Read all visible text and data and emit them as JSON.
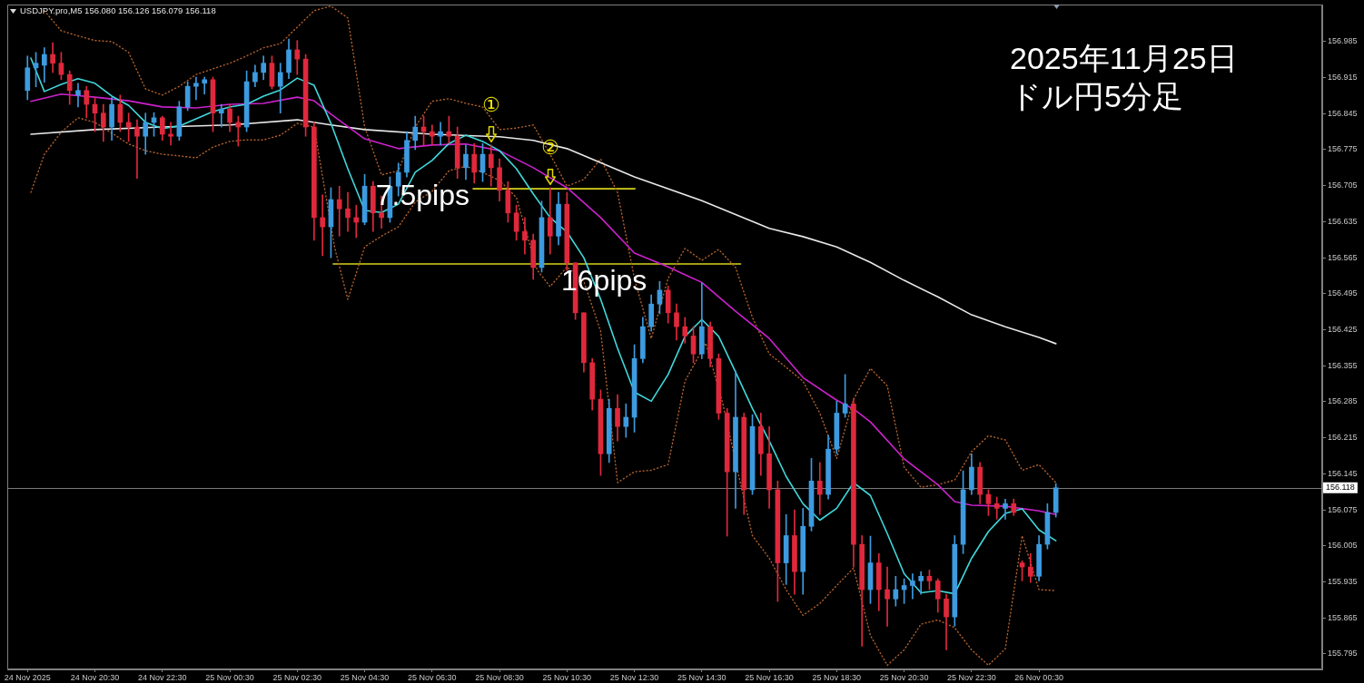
{
  "chart_data": {
    "type": "candlestick",
    "title": "2025年11月25日",
    "subtitle": "ドル円5分足",
    "annotations": [
      "USDJPY.pro,M5 156.080 156.126 156.079 156.118",
      {
        "text": "①",
        "x": "2025-11-25T08:15",
        "y": 156.784
      },
      {
        "text": "②",
        "x": "2025-11-25T10:00",
        "y": 156.701
      },
      {
        "text": "7.5pips",
        "x": "2025-11-25T07:43",
        "y": 156.699
      },
      {
        "text": "16pips",
        "x": "2025-11-25T11:36",
        "y": 156.553
      }
    ],
    "x": [
      "2025-11-24T18:30",
      "2025-11-24T18:45",
      "2025-11-24T19:00",
      "2025-11-24T19:15",
      "2025-11-24T19:30",
      "2025-11-24T19:45",
      "2025-11-24T20:00",
      "2025-11-24T20:15",
      "2025-11-24T20:30",
      "2025-11-24T20:45",
      "2025-11-24T21:00",
      "2025-11-24T21:15",
      "2025-11-24T21:30",
      "2025-11-24T21:45",
      "2025-11-24T22:00",
      "2025-11-24T22:15",
      "2025-11-24T22:30",
      "2025-11-24T22:45",
      "2025-11-24T23:00",
      "2025-11-24T23:15",
      "2025-11-24T23:30",
      "2025-11-24T23:45",
      "2025-11-25T00:00",
      "2025-11-25T00:15",
      "2025-11-25T00:30",
      "2025-11-25T00:45",
      "2025-11-25T01:00",
      "2025-11-25T01:15",
      "2025-11-25T01:30",
      "2025-11-25T01:45",
      "2025-11-25T02:00",
      "2025-11-25T02:15",
      "2025-11-25T02:30",
      "2025-11-25T02:45",
      "2025-11-25T03:00",
      "2025-11-25T03:15",
      "2025-11-25T03:30",
      "2025-11-25T03:45",
      "2025-11-25T04:00",
      "2025-11-25T04:15",
      "2025-11-25T04:30",
      "2025-11-25T04:45",
      "2025-11-25T05:00",
      "2025-11-25T05:15",
      "2025-11-25T05:30",
      "2025-11-25T05:45",
      "2025-11-25T06:00",
      "2025-11-25T06:15",
      "2025-11-25T06:30",
      "2025-11-25T06:45",
      "2025-11-25T07:00",
      "2025-11-25T07:15",
      "2025-11-25T07:30",
      "2025-11-25T07:45",
      "2025-11-25T08:00",
      "2025-11-25T08:15",
      "2025-11-25T08:30",
      "2025-11-25T08:45",
      "2025-11-25T09:00",
      "2025-11-25T09:15",
      "2025-11-25T09:30",
      "2025-11-25T09:45",
      "2025-11-25T10:00",
      "2025-11-25T10:15",
      "2025-11-25T10:30",
      "2025-11-25T10:45",
      "2025-11-25T11:00",
      "2025-11-25T11:15",
      "2025-11-25T11:30",
      "2025-11-25T11:45",
      "2025-11-25T12:00",
      "2025-11-25T12:15",
      "2025-11-25T12:30",
      "2025-11-25T12:45",
      "2025-11-25T13:00",
      "2025-11-25T13:15",
      "2025-11-25T13:30",
      "2025-11-25T13:45",
      "2025-11-25T14:00",
      "2025-11-25T14:15",
      "2025-11-25T14:30",
      "2025-11-25T14:45",
      "2025-11-25T15:00",
      "2025-11-25T15:15",
      "2025-11-25T15:30",
      "2025-11-25T15:45",
      "2025-11-25T16:00",
      "2025-11-25T16:15",
      "2025-11-25T16:30",
      "2025-11-25T16:45",
      "2025-11-25T17:00",
      "2025-11-25T17:15",
      "2025-11-25T17:30",
      "2025-11-25T17:45",
      "2025-11-25T18:00",
      "2025-11-25T18:15",
      "2025-11-25T18:30",
      "2025-11-25T18:45",
      "2025-11-25T19:00",
      "2025-11-25T19:15",
      "2025-11-25T19:30",
      "2025-11-25T19:45",
      "2025-11-25T20:00",
      "2025-11-25T20:15",
      "2025-11-25T20:30",
      "2025-11-25T20:45",
      "2025-11-25T21:00",
      "2025-11-25T21:15",
      "2025-11-25T21:30",
      "2025-11-25T21:45",
      "2025-11-25T22:00",
      "2025-11-25T22:15",
      "2025-11-25T22:30",
      "2025-11-25T22:45",
      "2025-11-25T23:00",
      "2025-11-25T23:15",
      "2025-11-25T23:30",
      "2025-11-25T23:45",
      "2025-11-26T00:00",
      "2025-11-26T00:15",
      "2025-11-26T00:30",
      "2025-11-26T00:45",
      "2025-11-26T01:00"
    ],
    "ohlc": [
      [
        156.89,
        156.957,
        156.872,
        156.934
      ],
      [
        156.934,
        156.964,
        156.897,
        156.943
      ],
      [
        156.939,
        156.973,
        156.906,
        156.96
      ],
      [
        156.96,
        156.983,
        156.925,
        156.943
      ],
      [
        156.943,
        156.964,
        156.911,
        156.921
      ],
      [
        156.921,
        156.928,
        156.863,
        156.89
      ],
      [
        156.881,
        156.904,
        156.858,
        156.89
      ],
      [
        156.89,
        156.898,
        156.837,
        156.863
      ],
      [
        156.863,
        156.876,
        156.81,
        156.846
      ],
      [
        156.846,
        156.863,
        156.791,
        156.819
      ],
      [
        156.819,
        156.876,
        156.793,
        156.863
      ],
      [
        156.863,
        156.881,
        156.81,
        156.828
      ],
      [
        156.828,
        156.846,
        156.791,
        156.819
      ],
      [
        156.819,
        156.833,
        156.719,
        156.801
      ],
      [
        156.801,
        156.846,
        156.766,
        156.828
      ],
      [
        156.828,
        156.847,
        156.801,
        156.837
      ],
      [
        156.837,
        156.84,
        156.793,
        156.805
      ],
      [
        156.805,
        156.828,
        156.784,
        156.801
      ],
      [
        156.801,
        156.869,
        156.793,
        156.858
      ],
      [
        156.858,
        156.907,
        156.851,
        156.898
      ],
      [
        156.898,
        156.916,
        156.872,
        156.904
      ],
      [
        156.904,
        156.916,
        156.883,
        156.911
      ],
      [
        156.911,
        156.916,
        156.81,
        156.846
      ],
      [
        156.846,
        156.863,
        156.819,
        156.854
      ],
      [
        156.854,
        156.863,
        156.81,
        156.828
      ],
      [
        156.828,
        156.84,
        156.782,
        156.819
      ],
      [
        156.819,
        156.928,
        156.81,
        156.907
      ],
      [
        156.907,
        156.939,
        156.897,
        156.925
      ],
      [
        156.925,
        156.957,
        156.911,
        156.943
      ],
      [
        156.943,
        156.957,
        156.893,
        156.898
      ],
      [
        156.898,
        156.943,
        156.846,
        156.925
      ],
      [
        156.925,
        156.99,
        156.913,
        156.969
      ],
      [
        156.969,
        156.987,
        156.921,
        156.951
      ],
      [
        156.951,
        156.96,
        156.801,
        156.819
      ],
      [
        156.819,
        156.828,
        156.599,
        156.643
      ],
      [
        156.643,
        156.687,
        156.569,
        156.625
      ],
      [
        156.625,
        156.701,
        156.565,
        156.678
      ],
      [
        156.678,
        156.704,
        156.607,
        156.66
      ],
      [
        156.66,
        156.692,
        156.616,
        156.643
      ],
      [
        156.643,
        156.667,
        156.604,
        156.634
      ],
      [
        156.634,
        156.727,
        156.629,
        156.704
      ],
      [
        156.704,
        156.713,
        156.616,
        156.652
      ],
      [
        156.652,
        156.685,
        156.622,
        156.643
      ],
      [
        156.643,
        156.722,
        156.634,
        156.704
      ],
      [
        156.704,
        156.749,
        156.685,
        156.731
      ],
      [
        156.731,
        156.81,
        156.722,
        156.793
      ],
      [
        156.793,
        156.84,
        156.775,
        156.819
      ],
      [
        156.819,
        156.84,
        156.784,
        156.81
      ],
      [
        156.81,
        156.823,
        156.784,
        156.801
      ],
      [
        156.801,
        156.828,
        156.784,
        156.81
      ],
      [
        156.81,
        156.84,
        156.787,
        156.801
      ],
      [
        156.801,
        156.819,
        156.719,
        156.74
      ],
      [
        156.74,
        156.784,
        156.717,
        156.766
      ],
      [
        156.766,
        156.787,
        156.71,
        156.731
      ],
      [
        156.731,
        156.787,
        156.713,
        156.766
      ],
      [
        156.766,
        156.784,
        156.704,
        156.74
      ],
      [
        156.74,
        156.757,
        156.675,
        156.696
      ],
      [
        156.696,
        156.713,
        156.634,
        156.652
      ],
      [
        156.652,
        156.667,
        156.599,
        156.616
      ],
      [
        156.616,
        156.643,
        156.572,
        156.599
      ],
      [
        156.599,
        156.611,
        156.523,
        156.546
      ],
      [
        156.546,
        156.675,
        156.537,
        156.643
      ],
      [
        156.643,
        156.701,
        156.572,
        156.607
      ],
      [
        156.607,
        156.692,
        156.59,
        156.669
      ],
      [
        156.669,
        156.692,
        156.54,
        156.555
      ],
      [
        156.555,
        156.555,
        156.445,
        156.458
      ],
      [
        156.458,
        156.458,
        156.343,
        156.361
      ],
      [
        156.361,
        156.369,
        156.269,
        156.29
      ],
      [
        156.29,
        156.308,
        156.142,
        156.184
      ],
      [
        156.184,
        156.29,
        156.167,
        156.272
      ],
      [
        156.272,
        156.299,
        156.209,
        156.237
      ],
      [
        156.237,
        156.281,
        156.216,
        156.255
      ],
      [
        156.255,
        156.396,
        156.226,
        156.369
      ],
      [
        156.369,
        156.449,
        156.361,
        156.431
      ],
      [
        156.431,
        156.493,
        156.422,
        156.475
      ],
      [
        156.475,
        156.519,
        156.456,
        156.502
      ],
      [
        156.502,
        156.51,
        156.438,
        156.458
      ],
      [
        156.458,
        156.475,
        156.405,
        156.431
      ],
      [
        156.431,
        156.449,
        156.399,
        156.413
      ],
      [
        156.413,
        156.431,
        156.361,
        156.378
      ],
      [
        156.378,
        156.516,
        156.369,
        156.431
      ],
      [
        156.431,
        156.44,
        156.353,
        156.369
      ],
      [
        156.369,
        156.378,
        156.251,
        156.263
      ],
      [
        156.263,
        156.272,
        156.024,
        156.149
      ],
      [
        156.149,
        156.345,
        156.078,
        156.255
      ],
      [
        156.255,
        156.263,
        156.066,
        156.114
      ],
      [
        156.114,
        156.26,
        156.105,
        156.237
      ],
      [
        156.237,
        156.263,
        156.142,
        156.184
      ],
      [
        156.184,
        156.237,
        156.078,
        156.114
      ],
      [
        156.114,
        156.131,
        155.897,
        155.972
      ],
      [
        155.972,
        156.066,
        155.93,
        156.025
      ],
      [
        156.025,
        156.075,
        155.911,
        155.955
      ],
      [
        155.955,
        156.078,
        155.911,
        156.043
      ],
      [
        156.043,
        156.175,
        156.034,
        156.131
      ],
      [
        156.131,
        156.167,
        156.066,
        156.105
      ],
      [
        156.105,
        156.219,
        156.096,
        156.193
      ],
      [
        156.193,
        156.286,
        156.184,
        156.263
      ],
      [
        156.263,
        156.338,
        156.255,
        156.281
      ],
      [
        156.281,
        156.29,
        155.964,
        156.008
      ],
      [
        156.008,
        156.025,
        155.81,
        155.92
      ],
      [
        155.92,
        156.024,
        155.893,
        155.972
      ],
      [
        155.972,
        155.99,
        155.879,
        155.92
      ],
      [
        155.92,
        155.964,
        155.849,
        155.902
      ],
      [
        155.902,
        155.946,
        155.888,
        155.92
      ],
      [
        155.92,
        155.941,
        155.893,
        155.928
      ],
      [
        155.928,
        155.951,
        155.902,
        155.937
      ],
      [
        155.937,
        155.955,
        155.911,
        155.946
      ],
      [
        155.946,
        155.958,
        155.92,
        155.937
      ],
      [
        155.937,
        155.941,
        155.876,
        155.902
      ],
      [
        155.902,
        155.911,
        155.803,
        155.867
      ],
      [
        155.867,
        156.025,
        155.849,
        156.008
      ],
      [
        156.008,
        156.151,
        155.99,
        156.114
      ],
      [
        156.114,
        156.184,
        156.105,
        156.158
      ],
      [
        156.158,
        156.167,
        156.087,
        156.105
      ],
      [
        156.105,
        156.114,
        156.064,
        156.087
      ],
      [
        156.087,
        156.1,
        156.057,
        156.078
      ],
      [
        156.078,
        156.096,
        156.057,
        156.087
      ],
      [
        156.087,
        156.096,
        156.064,
        156.07
      ],
      [
        155.972,
        155.976,
        155.937,
        155.964
      ],
      [
        155.964,
        155.99,
        155.934,
        155.946
      ],
      [
        155.946,
        156.025,
        155.937,
        156.008
      ],
      [
        156.008,
        156.087,
        155.999,
        156.07
      ],
      [
        156.07,
        156.126,
        156.061,
        156.118
      ]
    ],
    "colors": [
      "#3d9be0",
      "#3d9be0",
      "#3d9be0",
      "#e0283c",
      "#e0283c",
      "#e0283c",
      "#3d9be0",
      "#e0283c",
      "#e0283c",
      "#e0283c",
      "#3d9be0",
      "#e0283c",
      "#e0283c",
      "#e0283c",
      "#3d9be0",
      "#3d9be0",
      "#e0283c",
      "#e0283c",
      "#3d9be0",
      "#3d9be0",
      "#3d9be0",
      "#3d9be0",
      "#e0283c",
      "#3d9be0",
      "#e0283c",
      "#e0283c",
      "#3d9be0",
      "#3d9be0",
      "#3d9be0",
      "#e0283c",
      "#3d9be0",
      "#3d9be0",
      "#e0283c",
      "#e0283c",
      "#e0283c",
      "#e0283c",
      "#3d9be0",
      "#e0283c",
      "#e0283c",
      "#e0283c",
      "#3d9be0",
      "#e0283c",
      "#e0283c",
      "#3d9be0",
      "#3d9be0",
      "#3d9be0",
      "#3d9be0",
      "#e0283c",
      "#e0283c",
      "#3d9be0",
      "#e0283c",
      "#e0283c",
      "#3d9be0",
      "#e0283c",
      "#3d9be0",
      "#e0283c",
      "#e0283c",
      "#e0283c",
      "#e0283c",
      "#e0283c",
      "#e0283c",
      "#3d9be0",
      "#e0283c",
      "#3d9be0",
      "#e0283c",
      "#e0283c",
      "#e0283c",
      "#e0283c",
      "#e0283c",
      "#3d9be0",
      "#e0283c",
      "#3d9be0",
      "#3d9be0",
      "#3d9be0",
      "#3d9be0",
      "#3d9be0",
      "#e0283c",
      "#e0283c",
      "#e0283c",
      "#e0283c",
      "#3d9be0",
      "#e0283c",
      "#e0283c",
      "#e0283c",
      "#3d9be0",
      "#e0283c",
      "#3d9be0",
      "#e0283c",
      "#e0283c",
      "#e0283c",
      "#3d9be0",
      "#e0283c",
      "#3d9be0",
      "#3d9be0",
      "#e0283c",
      "#3d9be0",
      "#3d9be0",
      "#3d9be0",
      "#e0283c",
      "#e0283c",
      "#3d9be0",
      "#e0283c",
      "#e0283c",
      "#3d9be0",
      "#3d9be0",
      "#3d9be0",
      "#3d9be0",
      "#e0283c",
      "#e0283c",
      "#e0283c",
      "#3d9be0",
      "#3d9be0",
      "#3d9be0",
      "#e0283c",
      "#e0283c",
      "#e0283c",
      "#3d9be0",
      "#e0283c",
      "#e0283c",
      "#e0283c",
      "#3d9be0",
      "#3d9be0",
      "#3d9be0"
    ],
    "series": [
      {
        "type": "line",
        "color": "#40d8dc",
        "x": [
          "2025-11-24T18:36",
          "2025-11-24T19:00",
          "2025-11-24T19:30",
          "2025-11-24T20:00",
          "2025-11-24T20:30",
          "2025-11-24T21:00",
          "2025-11-24T21:30",
          "2025-11-24T22:00",
          "2025-11-24T22:30",
          "2025-11-24T23:00",
          "2025-11-24T23:30",
          "2025-11-25T00:00",
          "2025-11-25T00:30",
          "2025-11-25T01:00",
          "2025-11-25T01:30",
          "2025-11-25T02:00",
          "2025-11-25T02:30",
          "2025-11-25T03:00",
          "2025-11-25T03:30",
          "2025-11-25T04:00",
          "2025-11-25T04:30",
          "2025-11-25T05:00",
          "2025-11-25T05:30",
          "2025-11-25T06:00",
          "2025-11-25T06:30",
          "2025-11-25T07:00",
          "2025-11-25T07:30",
          "2025-11-25T08:00",
          "2025-11-25T08:30",
          "2025-11-25T09:00",
          "2025-11-25T09:30",
          "2025-11-25T10:00",
          "2025-11-25T10:30",
          "2025-11-25T11:00",
          "2025-11-25T11:30",
          "2025-11-25T12:00",
          "2025-11-25T12:30",
          "2025-11-25T13:00",
          "2025-11-25T13:30",
          "2025-11-25T14:00",
          "2025-11-25T14:30",
          "2025-11-25T15:00",
          "2025-11-25T15:30",
          "2025-11-25T16:00",
          "2025-11-25T16:30",
          "2025-11-25T17:00",
          "2025-11-25T17:30",
          "2025-11-25T18:00",
          "2025-11-25T18:30",
          "2025-11-25T19:00",
          "2025-11-25T19:30",
          "2025-11-25T20:00",
          "2025-11-25T20:30",
          "2025-11-25T21:00",
          "2025-11-25T21:30",
          "2025-11-25T22:00",
          "2025-11-25T22:30",
          "2025-11-25T23:00",
          "2025-11-25T23:30",
          "2025-11-26T00:00",
          "2025-11-26T00:30",
          "2025-11-26T01:00"
        ],
        "values": [
          156.953,
          156.888,
          156.902,
          156.913,
          156.904,
          156.879,
          156.861,
          156.828,
          156.816,
          156.821,
          156.835,
          156.849,
          156.858,
          156.863,
          156.879,
          156.891,
          156.914,
          156.9,
          156.826,
          156.738,
          156.657,
          156.653,
          156.669,
          156.731,
          156.754,
          156.787,
          156.803,
          156.791,
          156.773,
          156.738,
          156.689,
          156.643,
          156.615,
          156.565,
          156.484,
          156.389,
          156.304,
          156.286,
          156.338,
          156.412,
          156.445,
          156.412,
          156.343,
          156.272,
          156.209,
          156.14,
          156.087,
          156.055,
          156.078,
          156.128,
          156.103,
          156.029,
          155.951,
          155.914,
          155.918,
          155.912,
          155.981,
          156.033,
          156.068,
          156.077,
          156.036,
          156.015
        ]
      },
      {
        "type": "line",
        "color": "#cc22cc",
        "x": [
          "2025-11-24T18:36",
          "2025-11-24T19:30",
          "2025-11-24T20:30",
          "2025-11-24T21:30",
          "2025-11-24T22:30",
          "2025-11-24T23:30",
          "2025-11-25T00:30",
          "2025-11-25T01:30",
          "2025-11-25T02:30",
          "2025-11-25T03:00",
          "2025-11-25T03:30",
          "2025-11-25T04:30",
          "2025-11-25T05:30",
          "2025-11-25T06:30",
          "2025-11-25T07:30",
          "2025-11-25T08:30",
          "2025-11-25T09:30",
          "2025-11-25T10:30",
          "2025-11-25T11:30",
          "2025-11-25T12:30",
          "2025-11-25T13:30",
          "2025-11-25T14:30",
          "2025-11-25T15:30",
          "2025-11-25T16:30",
          "2025-11-25T17:30",
          "2025-11-25T18:30",
          "2025-11-25T19:00",
          "2025-11-25T19:30",
          "2025-11-25T20:30",
          "2025-11-25T21:30",
          "2025-11-25T22:00",
          "2025-11-25T22:30",
          "2025-11-25T23:30",
          "2025-11-26T00:30",
          "2025-11-26T01:00"
        ],
        "values": [
          156.869,
          156.883,
          156.877,
          156.87,
          156.858,
          156.856,
          156.863,
          156.865,
          156.877,
          156.87,
          156.844,
          156.796,
          156.777,
          156.784,
          156.786,
          156.773,
          156.74,
          156.701,
          156.643,
          156.574,
          156.547,
          156.517,
          156.461,
          156.408,
          156.332,
          156.288,
          156.271,
          156.246,
          156.174,
          156.124,
          156.091,
          156.084,
          156.082,
          156.073,
          156.066
        ]
      },
      {
        "type": "line",
        "color": "#e8e8e8",
        "x": [
          "2025-11-24T18:36",
          "2025-11-24T20:30",
          "2025-11-24T22:30",
          "2025-11-25T00:30",
          "2025-11-25T02:30",
          "2025-11-25T03:30",
          "2025-11-25T04:30",
          "2025-11-25T06:30",
          "2025-11-25T08:30",
          "2025-11-25T09:30",
          "2025-11-25T10:30",
          "2025-11-25T12:30",
          "2025-11-25T14:30",
          "2025-11-25T16:30",
          "2025-11-25T17:30",
          "2025-11-25T18:30",
          "2025-11-25T19:30",
          "2025-11-25T20:30",
          "2025-11-25T21:30",
          "2025-11-25T22:30",
          "2025-11-25T23:30",
          "2025-11-26T00:30",
          "2025-11-26T01:00"
        ],
        "values": [
          156.805,
          156.814,
          156.819,
          156.823,
          156.833,
          156.823,
          156.814,
          156.805,
          156.8,
          156.793,
          156.777,
          156.722,
          156.676,
          156.622,
          156.606,
          156.586,
          156.556,
          156.521,
          156.489,
          156.454,
          156.431,
          156.41,
          156.398
        ]
      },
      {
        "type": "line",
        "color": "#b0602c",
        "line_style": "dotted",
        "x": [
          "2025-11-24T19:00",
          "2025-11-24T19:30",
          "2025-11-24T20:00",
          "2025-11-24T20:30",
          "2025-11-24T21:00",
          "2025-11-24T21:30",
          "2025-11-24T22:00",
          "2025-11-24T22:30",
          "2025-11-24T23:00",
          "2025-11-24T23:30",
          "2025-11-25T00:00",
          "2025-11-25T00:30",
          "2025-11-25T01:00",
          "2025-11-25T01:30",
          "2025-11-25T02:00",
          "2025-11-25T02:30",
          "2025-11-25T03:00",
          "2025-11-25T03:30",
          "2025-11-25T04:00",
          "2025-11-25T04:30",
          "2025-11-25T05:00",
          "2025-11-25T05:30",
          "2025-11-25T06:00",
          "2025-11-25T06:30",
          "2025-11-25T07:00",
          "2025-11-25T07:30",
          "2025-11-25T08:00",
          "2025-11-25T08:30",
          "2025-11-25T09:00",
          "2025-11-25T09:30",
          "2025-11-25T10:00",
          "2025-11-25T10:30",
          "2025-11-25T11:00",
          "2025-11-25T11:30",
          "2025-11-25T12:00",
          "2025-11-25T12:30",
          "2025-11-25T13:00",
          "2025-11-25T13:30",
          "2025-11-25T14:00",
          "2025-11-25T14:30",
          "2025-11-25T15:00",
          "2025-11-25T15:30",
          "2025-11-25T16:00",
          "2025-11-25T16:30",
          "2025-11-25T17:00",
          "2025-11-25T17:30",
          "2025-11-25T18:00",
          "2025-11-25T18:30",
          "2025-11-25T19:00",
          "2025-11-25T19:30",
          "2025-11-25T20:00",
          "2025-11-25T20:30",
          "2025-11-25T21:00",
          "2025-11-25T21:30",
          "2025-11-25T22:00",
          "2025-11-25T22:30",
          "2025-11-25T23:00",
          "2025-11-25T23:30",
          "2025-11-26T00:00",
          "2025-11-26T00:30",
          "2025-11-26T01:00"
        ],
        "values": [
          157.045,
          157.006,
          156.996,
          156.987,
          156.985,
          156.964,
          156.893,
          156.881,
          156.898,
          156.921,
          156.932,
          156.943,
          156.957,
          156.973,
          156.981,
          157.013,
          157.045,
          157.054,
          157.031,
          156.819,
          156.726,
          156.734,
          156.819,
          156.869,
          156.874,
          156.865,
          156.858,
          156.814,
          156.817,
          156.823,
          156.766,
          156.704,
          156.717,
          156.757,
          156.692,
          156.525,
          156.408,
          156.525,
          156.583,
          156.56,
          156.581,
          156.546,
          156.449,
          156.378,
          156.352,
          156.325,
          156.263,
          156.175,
          156.29,
          156.35,
          156.316,
          156.158,
          156.119,
          156.124,
          156.133,
          156.188,
          156.219,
          156.211,
          156.152,
          156.163,
          156.128
        ]
      },
      {
        "type": "line",
        "color": "#b0602c",
        "line_style": "dotted",
        "x": [
          "2025-11-24T18:36",
          "2025-11-24T19:00",
          "2025-11-24T19:30",
          "2025-11-24T20:00",
          "2025-11-24T20:30",
          "2025-11-24T21:00",
          "2025-11-24T21:30",
          "2025-11-24T22:00",
          "2025-11-24T22:30",
          "2025-11-24T23:00",
          "2025-11-24T23:30",
          "2025-11-25T00:00",
          "2025-11-25T00:30",
          "2025-11-25T01:00",
          "2025-11-25T01:30",
          "2025-11-25T02:00",
          "2025-11-25T02:30",
          "2025-11-25T03:00",
          "2025-11-25T03:37",
          "2025-11-25T04:00",
          "2025-11-25T04:30",
          "2025-11-25T05:00",
          "2025-11-25T05:30",
          "2025-11-25T06:00",
          "2025-11-25T06:30",
          "2025-11-25T07:00",
          "2025-11-25T07:30",
          "2025-11-25T08:00",
          "2025-11-25T08:30",
          "2025-11-25T09:00",
          "2025-11-25T09:37",
          "2025-11-25T10:00",
          "2025-11-25T10:30",
          "2025-11-25T11:00",
          "2025-11-25T11:30",
          "2025-11-25T12:00",
          "2025-11-25T12:30",
          "2025-11-25T13:00",
          "2025-11-25T13:30",
          "2025-11-25T14:00",
          "2025-11-25T14:37",
          "2025-11-25T15:07",
          "2025-11-25T15:37",
          "2025-11-25T16:00",
          "2025-11-25T16:30",
          "2025-11-25T17:00",
          "2025-11-25T17:30",
          "2025-11-25T18:00",
          "2025-11-25T18:30",
          "2025-11-25T19:00",
          "2025-11-25T19:30",
          "2025-11-25T20:00",
          "2025-11-25T20:30",
          "2025-11-25T21:00",
          "2025-11-25T21:30",
          "2025-11-25T22:00",
          "2025-11-25T22:30",
          "2025-11-25T23:00",
          "2025-11-25T23:30",
          "2025-11-26T00:00",
          "2025-11-26T00:30",
          "2025-11-26T01:00"
        ],
        "values": [
          156.692,
          156.766,
          156.809,
          156.837,
          156.828,
          156.807,
          156.786,
          156.773,
          156.766,
          156.763,
          156.759,
          156.78,
          156.791,
          156.794,
          156.794,
          156.803,
          156.826,
          156.819,
          156.583,
          156.484,
          156.586,
          156.607,
          156.625,
          156.673,
          156.694,
          156.734,
          156.743,
          156.731,
          156.715,
          156.682,
          156.541,
          156.509,
          156.547,
          156.519,
          156.422,
          156.128,
          156.149,
          156.152,
          156.163,
          156.325,
          156.399,
          156.283,
          156.135,
          156.025,
          155.981,
          155.92,
          155.87,
          155.893,
          155.928,
          155.962,
          155.831,
          155.773,
          155.803,
          155.853,
          155.861,
          155.846,
          155.803,
          155.773,
          155.805,
          156.025,
          155.92,
          155.918
        ]
      },
      {
        "type": "line",
        "color": "#d6d21c",
        "x": [
          "2025-11-25T07:43",
          "2025-11-25T12:31"
        ],
        "values": [
          156.699,
          156.699
        ]
      },
      {
        "type": "line",
        "color": "#d6d21c",
        "x": [
          "2025-11-25T03:34",
          "2025-11-25T15:39"
        ],
        "values": [
          156.553,
          156.553
        ]
      }
    ],
    "xlim": [
      "2025-11-24T17:54",
      "2025-11-26T08:54"
    ],
    "xticks": [
      {
        "value": "2025-11-24T18:30",
        "label": "24 Nov 2025"
      },
      {
        "value": "2025-11-24T20:30",
        "label": "24 Nov 20:30"
      },
      {
        "value": "2025-11-24T22:30",
        "label": "24 Nov 22:30"
      },
      {
        "value": "2025-11-25T00:30",
        "label": "25 Nov 00:30"
      },
      {
        "value": "2025-11-25T02:30",
        "label": "25 Nov 02:30"
      },
      {
        "value": "2025-11-25T04:30",
        "label": "25 Nov 04:30"
      },
      {
        "value": "2025-11-25T06:30",
        "label": "25 Nov 06:30"
      },
      {
        "value": "2025-11-25T08:30",
        "label": "25 Nov 08:30"
      },
      {
        "value": "2025-11-25T10:30",
        "label": "25 Nov 10:30"
      },
      {
        "value": "2025-11-25T12:30",
        "label": "25 Nov 12:30"
      },
      {
        "value": "2025-11-25T14:30",
        "label": "25 Nov 14:30"
      },
      {
        "value": "2025-11-25T16:30",
        "label": "25 Nov 16:30"
      },
      {
        "value": "2025-11-25T18:30",
        "label": "25 Nov 18:30"
      },
      {
        "value": "2025-11-25T20:30",
        "label": "25 Nov 20:30"
      },
      {
        "value": "2025-11-25T22:30",
        "label": "25 Nov 22:30"
      },
      {
        "value": "2025-11-26T00:30",
        "label": "26 Nov 00:30"
      }
    ],
    "ylim": [
      155.765,
      157.057
    ],
    "yticks": [
      155.795,
      155.865,
      155.935,
      156.005,
      156.075,
      156.145,
      156.215,
      156.285,
      156.355,
      156.425,
      156.495,
      156.565,
      156.635,
      156.705,
      156.775,
      156.845,
      156.915,
      156.985
    ],
    "ref_lines": [
      {
        "axis": "y",
        "value": 156.118,
        "label": "156.118",
        "color": "#7a7a7a"
      }
    ]
  }
}
